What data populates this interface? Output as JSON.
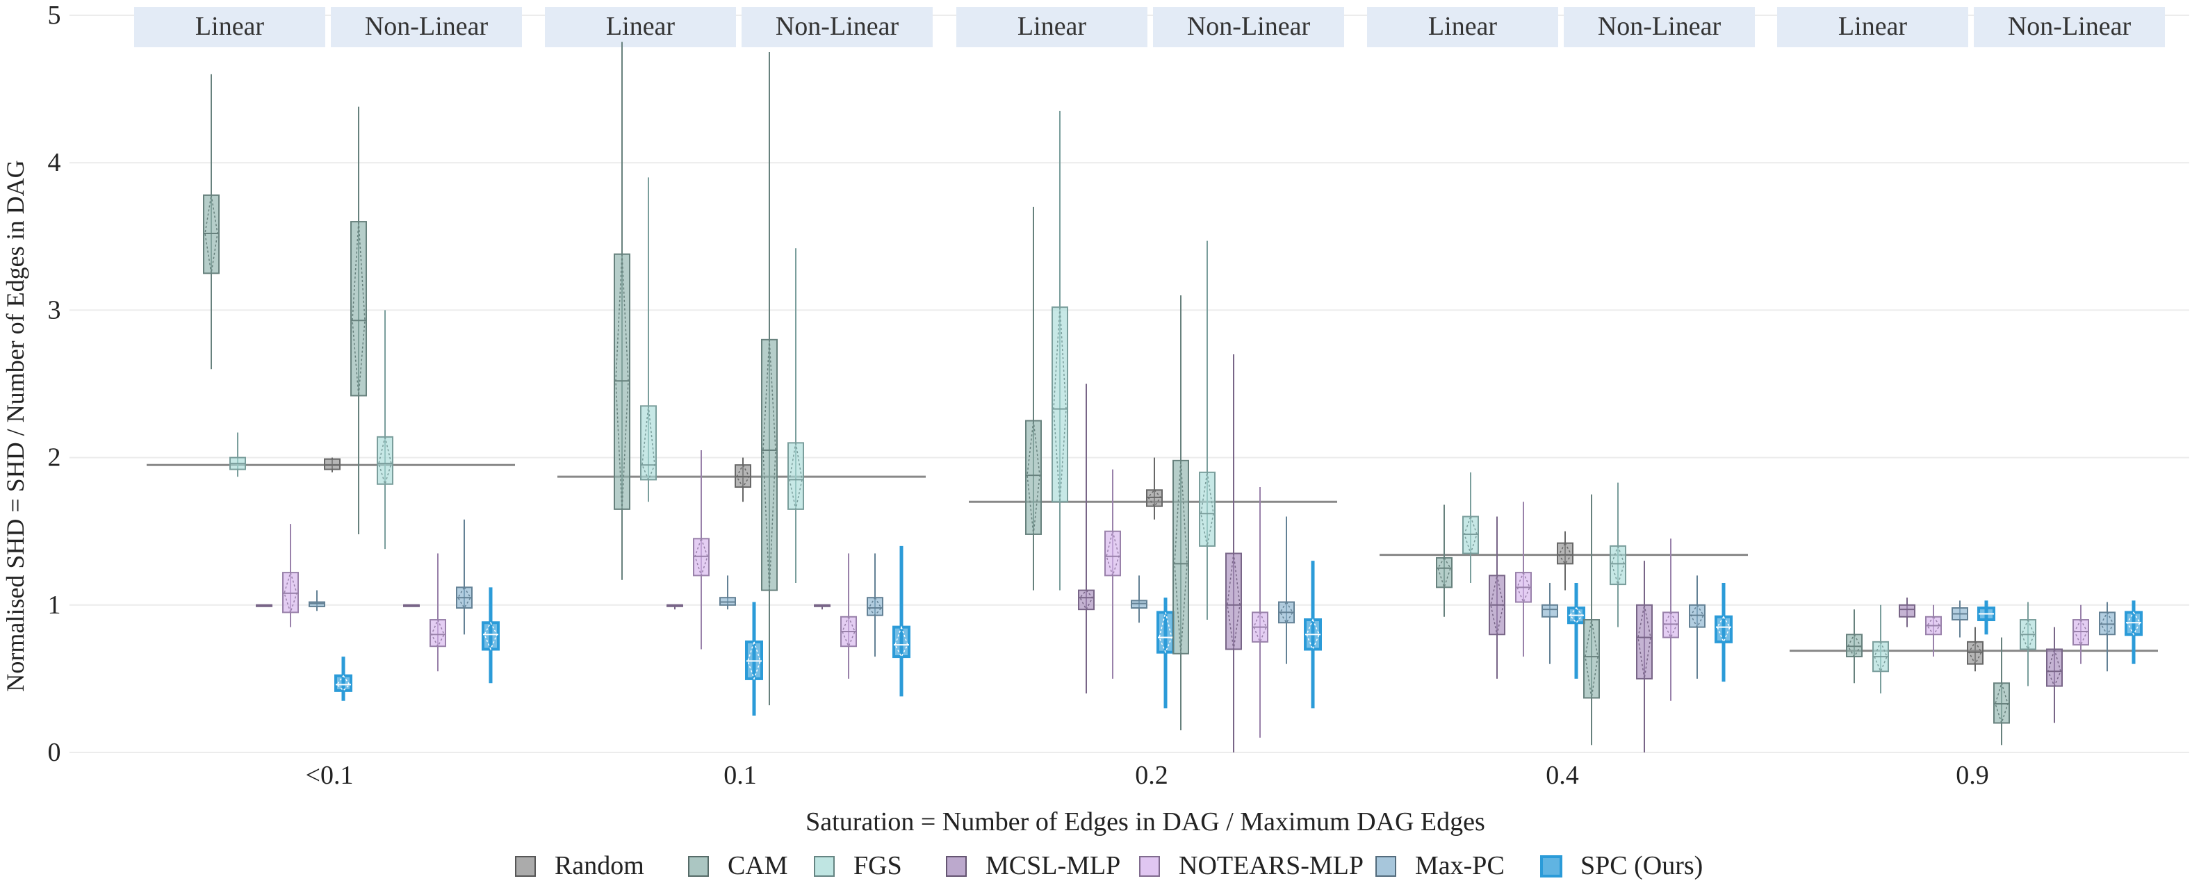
{
  "chart_data": {
    "type": "boxplot",
    "title": "",
    "xlabel": "Saturation = Number of Edges in DAG / Maximum DAG Edges",
    "ylabel": "Normalised SHD = SHD / Number of Edges in DAG",
    "ylim": [
      0,
      5
    ],
    "yticks": [
      "0",
      "1",
      "2",
      "3",
      "4",
      "5"
    ],
    "ytick_values": [
      0,
      1,
      2,
      3,
      4,
      5
    ],
    "categories": [
      "<0.1",
      "0.1",
      "0.2",
      "0.4",
      "0.9"
    ],
    "facets": [
      "Linear",
      "Non-Linear"
    ],
    "legend_position": "bottom",
    "legend": [
      "Random",
      "CAM",
      "FGS",
      "MCSL-MLP",
      "NOTEARS-MLP",
      "Max-PC",
      "SPC (Ours)"
    ],
    "colors": {
      "Random": "#8f8f8f",
      "CAM": "#8fb3ae",
      "FGS": "#a9dcd8",
      "MCSL-MLP": "#a68cbc",
      "NOTEARS-MLP": "#d5b3ec",
      "Max-PC": "#8ab3cf",
      "SPC (Ours)": "#2b9bd8"
    },
    "strip_color": "#e3ebf6",
    "reference_lines": [
      {
        "category": "<0.1",
        "value": 1.95
      },
      {
        "category": "0.1",
        "value": 1.87
      },
      {
        "category": "0.2",
        "value": 1.7
      },
      {
        "category": "0.4",
        "value": 1.34
      },
      {
        "category": "0.9",
        "value": 0.69
      }
    ],
    "groups": [
      {
        "category": "<0.1",
        "facet": "Linear",
        "boxes": [
          {
            "series": "CAM",
            "min": 2.6,
            "q1": 3.25,
            "median": 3.52,
            "q3": 3.78,
            "max": 4.6
          },
          {
            "series": "FGS",
            "min": 1.87,
            "q1": 1.92,
            "median": 1.96,
            "q3": 2.0,
            "max": 2.17
          },
          {
            "series": "MCSL-MLP",
            "min": 1.0,
            "q1": 1.0,
            "median": 1.0,
            "q3": 1.0,
            "max": 1.0
          },
          {
            "series": "NOTEARS-MLP",
            "min": 0.85,
            "q1": 0.95,
            "median": 1.08,
            "q3": 1.22,
            "max": 1.55
          },
          {
            "series": "Max-PC",
            "min": 0.96,
            "q1": 0.99,
            "median": 1.01,
            "q3": 1.02,
            "max": 1.1
          },
          {
            "series": "SPC (Ours)",
            "min": 0.35,
            "q1": 0.42,
            "median": 0.46,
            "q3": 0.52,
            "max": 0.65
          }
        ]
      },
      {
        "category": "<0.1",
        "facet": "Non-Linear",
        "boxes": [
          {
            "series": "Random",
            "min": 1.9,
            "q1": 1.92,
            "median": 1.95,
            "q3": 1.99,
            "max": 2.0
          },
          {
            "series": "CAM",
            "min": 1.48,
            "q1": 2.42,
            "median": 2.93,
            "q3": 3.6,
            "max": 4.38
          },
          {
            "series": "FGS",
            "min": 1.38,
            "q1": 1.82,
            "median": 1.96,
            "q3": 2.14,
            "max": 3.0
          },
          {
            "series": "MCSL-MLP",
            "min": 1.0,
            "q1": 1.0,
            "median": 1.0,
            "q3": 1.0,
            "max": 1.0
          },
          {
            "series": "NOTEARS-MLP",
            "min": 0.55,
            "q1": 0.72,
            "median": 0.8,
            "q3": 0.9,
            "max": 1.35
          },
          {
            "series": "Max-PC",
            "min": 0.8,
            "q1": 0.98,
            "median": 1.05,
            "q3": 1.12,
            "max": 1.58
          },
          {
            "series": "SPC (Ours)",
            "min": 0.47,
            "q1": 0.7,
            "median": 0.8,
            "q3": 0.88,
            "max": 1.12
          }
        ]
      },
      {
        "category": "0.1",
        "facet": "Linear",
        "boxes": [
          {
            "series": "CAM",
            "min": 1.17,
            "q1": 1.65,
            "median": 2.52,
            "q3": 3.38,
            "max": 4.82
          },
          {
            "series": "FGS",
            "min": 1.7,
            "q1": 1.85,
            "median": 1.95,
            "q3": 2.35,
            "max": 3.9
          },
          {
            "series": "MCSL-MLP",
            "min": 0.97,
            "q1": 1.0,
            "median": 1.0,
            "q3": 1.0,
            "max": 1.0
          },
          {
            "series": "NOTEARS-MLP",
            "min": 0.7,
            "q1": 1.2,
            "median": 1.33,
            "q3": 1.45,
            "max": 2.05
          },
          {
            "series": "Max-PC",
            "min": 0.97,
            "q1": 1.0,
            "median": 1.02,
            "q3": 1.05,
            "max": 1.2
          },
          {
            "series": "SPC (Ours)",
            "min": 0.25,
            "q1": 0.5,
            "median": 0.62,
            "q3": 0.75,
            "max": 1.02
          }
        ]
      },
      {
        "category": "0.1",
        "facet": "Non-Linear",
        "boxes": [
          {
            "series": "Random",
            "min": 1.7,
            "q1": 1.8,
            "median": 1.87,
            "q3": 1.95,
            "max": 2.0
          },
          {
            "series": "CAM",
            "min": 0.32,
            "q1": 1.1,
            "median": 2.05,
            "q3": 2.8,
            "max": 4.75
          },
          {
            "series": "FGS",
            "min": 1.15,
            "q1": 1.65,
            "median": 1.85,
            "q3": 2.1,
            "max": 3.42
          },
          {
            "series": "MCSL-MLP",
            "min": 0.97,
            "q1": 1.0,
            "median": 1.0,
            "q3": 1.0,
            "max": 1.0
          },
          {
            "series": "NOTEARS-MLP",
            "min": 0.5,
            "q1": 0.72,
            "median": 0.82,
            "q3": 0.92,
            "max": 1.35
          },
          {
            "series": "Max-PC",
            "min": 0.65,
            "q1": 0.93,
            "median": 0.98,
            "q3": 1.05,
            "max": 1.35
          },
          {
            "series": "SPC (Ours)",
            "min": 0.38,
            "q1": 0.65,
            "median": 0.73,
            "q3": 0.85,
            "max": 1.4
          }
        ]
      },
      {
        "category": "0.2",
        "facet": "Linear",
        "boxes": [
          {
            "series": "CAM",
            "min": 1.1,
            "q1": 1.48,
            "median": 1.88,
            "q3": 2.25,
            "max": 3.7
          },
          {
            "series": "FGS",
            "min": 1.1,
            "q1": 1.7,
            "median": 2.33,
            "q3": 3.02,
            "max": 4.35
          },
          {
            "series": "MCSL-MLP",
            "min": 0.4,
            "q1": 0.97,
            "median": 1.05,
            "q3": 1.1,
            "max": 2.5
          },
          {
            "series": "NOTEARS-MLP",
            "min": 0.5,
            "q1": 1.2,
            "median": 1.33,
            "q3": 1.5,
            "max": 1.92
          },
          {
            "series": "Max-PC",
            "min": 0.88,
            "q1": 0.98,
            "median": 1.01,
            "q3": 1.03,
            "max": 1.2
          },
          {
            "series": "SPC (Ours)",
            "min": 0.3,
            "q1": 0.68,
            "median": 0.78,
            "q3": 0.95,
            "max": 1.05
          }
        ]
      },
      {
        "category": "0.2",
        "facet": "Non-Linear",
        "boxes": [
          {
            "series": "Random",
            "min": 1.58,
            "q1": 1.67,
            "median": 1.73,
            "q3": 1.78,
            "max": 2.0
          },
          {
            "series": "CAM",
            "min": 0.15,
            "q1": 0.67,
            "median": 1.28,
            "q3": 1.98,
            "max": 3.1
          },
          {
            "series": "FGS",
            "min": 0.9,
            "q1": 1.4,
            "median": 1.62,
            "q3": 1.9,
            "max": 3.47
          },
          {
            "series": "MCSL-MLP",
            "min": 0.0,
            "q1": 0.7,
            "median": 1.0,
            "q3": 1.35,
            "max": 2.7
          },
          {
            "series": "NOTEARS-MLP",
            "min": 0.1,
            "q1": 0.75,
            "median": 0.85,
            "q3": 0.95,
            "max": 1.8
          },
          {
            "series": "Max-PC",
            "min": 0.6,
            "q1": 0.88,
            "median": 0.95,
            "q3": 1.02,
            "max": 1.6
          },
          {
            "series": "SPC (Ours)",
            "min": 0.3,
            "q1": 0.7,
            "median": 0.8,
            "q3": 0.9,
            "max": 1.3
          }
        ]
      },
      {
        "category": "0.4",
        "facet": "Linear",
        "boxes": [
          {
            "series": "CAM",
            "min": 0.92,
            "q1": 1.12,
            "median": 1.25,
            "q3": 1.32,
            "max": 1.68
          },
          {
            "series": "FGS",
            "min": 1.15,
            "q1": 1.35,
            "median": 1.48,
            "q3": 1.6,
            "max": 1.9
          },
          {
            "series": "MCSL-MLP",
            "min": 0.5,
            "q1": 0.8,
            "median": 1.0,
            "q3": 1.2,
            "max": 1.6
          },
          {
            "series": "NOTEARS-MLP",
            "min": 0.65,
            "q1": 1.02,
            "median": 1.12,
            "q3": 1.22,
            "max": 1.7
          },
          {
            "series": "Max-PC",
            "min": 0.6,
            "q1": 0.92,
            "median": 0.97,
            "q3": 1.0,
            "max": 1.15
          },
          {
            "series": "SPC (Ours)",
            "min": 0.5,
            "q1": 0.88,
            "median": 0.93,
            "q3": 0.98,
            "max": 1.15
          }
        ]
      },
      {
        "category": "0.4",
        "facet": "Non-Linear",
        "boxes": [
          {
            "series": "Random",
            "min": 1.1,
            "q1": 1.28,
            "median": 1.34,
            "q3": 1.42,
            "max": 1.5
          },
          {
            "series": "CAM",
            "min": 0.05,
            "q1": 0.37,
            "median": 0.65,
            "q3": 0.9,
            "max": 1.75
          },
          {
            "series": "FGS",
            "min": 0.85,
            "q1": 1.14,
            "median": 1.28,
            "q3": 1.4,
            "max": 1.83
          },
          {
            "series": "MCSL-MLP",
            "min": 0.0,
            "q1": 0.5,
            "median": 0.78,
            "q3": 1.0,
            "max": 1.3
          },
          {
            "series": "NOTEARS-MLP",
            "min": 0.35,
            "q1": 0.78,
            "median": 0.87,
            "q3": 0.95,
            "max": 1.45
          },
          {
            "series": "Max-PC",
            "min": 0.5,
            "q1": 0.85,
            "median": 0.93,
            "q3": 1.0,
            "max": 1.2
          },
          {
            "series": "SPC (Ours)",
            "min": 0.48,
            "q1": 0.75,
            "median": 0.85,
            "q3": 0.92,
            "max": 1.15
          }
        ]
      },
      {
        "category": "0.9",
        "facet": "Linear",
        "boxes": [
          {
            "series": "CAM",
            "min": 0.47,
            "q1": 0.65,
            "median": 0.72,
            "q3": 0.8,
            "max": 0.97
          },
          {
            "series": "FGS",
            "min": 0.4,
            "q1": 0.55,
            "median": 0.65,
            "q3": 0.75,
            "max": 1.0
          },
          {
            "series": "MCSL-MLP",
            "min": 0.85,
            "q1": 0.92,
            "median": 0.97,
            "q3": 1.0,
            "max": 1.05
          },
          {
            "series": "NOTEARS-MLP",
            "min": 0.65,
            "q1": 0.8,
            "median": 0.86,
            "q3": 0.92,
            "max": 1.0
          },
          {
            "series": "Max-PC",
            "min": 0.78,
            "q1": 0.9,
            "median": 0.94,
            "q3": 0.98,
            "max": 1.03
          },
          {
            "series": "SPC (Ours)",
            "min": 0.8,
            "q1": 0.9,
            "median": 0.94,
            "q3": 0.98,
            "max": 1.03
          }
        ]
      },
      {
        "category": "0.9",
        "facet": "Non-Linear",
        "boxes": [
          {
            "series": "Random",
            "min": 0.55,
            "q1": 0.6,
            "median": 0.68,
            "q3": 0.75,
            "max": 0.85
          },
          {
            "series": "CAM",
            "min": 0.05,
            "q1": 0.2,
            "median": 0.33,
            "q3": 0.47,
            "max": 0.78
          },
          {
            "series": "FGS",
            "min": 0.45,
            "q1": 0.7,
            "median": 0.8,
            "q3": 0.9,
            "max": 1.02
          },
          {
            "series": "MCSL-MLP",
            "min": 0.2,
            "q1": 0.45,
            "median": 0.55,
            "q3": 0.7,
            "max": 0.85
          },
          {
            "series": "NOTEARS-MLP",
            "min": 0.6,
            "q1": 0.73,
            "median": 0.82,
            "q3": 0.9,
            "max": 1.0
          },
          {
            "series": "Max-PC",
            "min": 0.55,
            "q1": 0.8,
            "median": 0.87,
            "q3": 0.95,
            "max": 1.02
          },
          {
            "series": "SPC (Ours)",
            "min": 0.6,
            "q1": 0.8,
            "median": 0.88,
            "q3": 0.95,
            "max": 1.03
          }
        ]
      }
    ]
  }
}
